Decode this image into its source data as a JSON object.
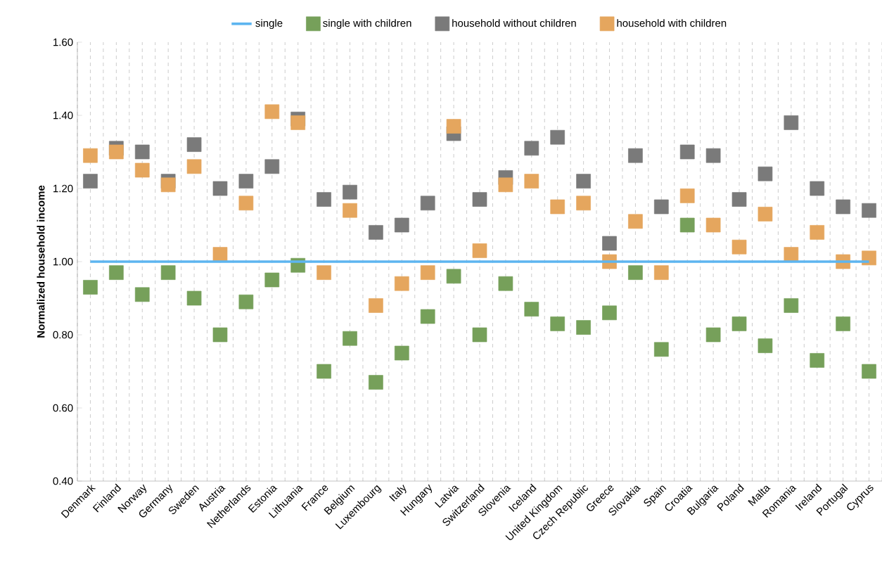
{
  "chart_data": {
    "type": "scatter",
    "ylabel": "Normalized household income",
    "categories": [
      "Denmark",
      "Finland",
      "Norway",
      "Germany",
      "Sweden",
      "Austria",
      "Netherlands",
      "Estonia",
      "Lithuania",
      "France",
      "Belgium",
      "Luxembourg",
      "Italy",
      "Hungary",
      "Latvia",
      "Switzerland",
      "Slovenia",
      "Iceland",
      "United Kingdom",
      "Czech Republic",
      "Greece",
      "Slovakia",
      "Spain",
      "Croatia",
      "Bulgaria",
      "Poland",
      "Malta",
      "Romania",
      "Ireland",
      "Portugal",
      "Cyprus"
    ],
    "series": [
      {
        "name": "single",
        "type": "line",
        "color": "#5db5f0",
        "values": [
          1,
          1,
          1,
          1,
          1,
          1,
          1,
          1,
          1,
          1,
          1,
          1,
          1,
          1,
          1,
          1,
          1,
          1,
          1,
          1,
          1,
          1,
          1,
          1,
          1,
          1,
          1,
          1,
          1,
          1,
          1
        ]
      },
      {
        "name": "single with children",
        "marker": "square",
        "color": "#76a05a",
        "values": [
          0.93,
          0.97,
          0.91,
          0.97,
          0.9,
          0.8,
          0.89,
          0.95,
          0.99,
          0.7,
          0.79,
          0.67,
          0.75,
          0.85,
          0.96,
          0.8,
          0.94,
          0.87,
          0.83,
          0.82,
          0.86,
          0.97,
          0.76,
          1.1,
          0.8,
          0.83,
          0.77,
          0.88,
          0.73,
          0.83,
          0.7
        ]
      },
      {
        "name": "household without children",
        "marker": "square",
        "color": "#7a7a7a",
        "values": [
          1.22,
          1.31,
          1.3,
          1.22,
          1.32,
          1.2,
          1.22,
          1.26,
          1.39,
          1.17,
          1.19,
          1.08,
          1.1,
          1.16,
          1.35,
          1.17,
          1.23,
          1.31,
          1.34,
          1.22,
          1.05,
          1.29,
          1.15,
          1.3,
          1.29,
          1.17,
          1.24,
          1.38,
          1.2,
          1.15,
          1.14
        ]
      },
      {
        "name": "household with children",
        "marker": "square",
        "color": "#e5a65e",
        "values": [
          1.29,
          1.3,
          1.25,
          1.21,
          1.26,
          1.02,
          1.16,
          1.41,
          1.38,
          0.97,
          1.14,
          0.88,
          0.94,
          0.97,
          1.37,
          1.03,
          1.21,
          1.22,
          1.15,
          1.16,
          1.0,
          1.11,
          0.97,
          1.18,
          1.1,
          1.04,
          1.13,
          1.02,
          1.08,
          1.0,
          1.01
        ]
      }
    ],
    "ylim": [
      0.4,
      1.6
    ],
    "yticks": [
      {
        "value": 0.4,
        "label": "0.40"
      },
      {
        "value": 0.6,
        "label": "0.60"
      },
      {
        "value": 0.8,
        "label": "0.80"
      },
      {
        "value": 1.0,
        "label": "1.00"
      },
      {
        "value": 1.2,
        "label": "1.20"
      },
      {
        "value": 1.4,
        "label": "1.40"
      },
      {
        "value": 1.6,
        "label": "1.60"
      }
    ],
    "grid": "x",
    "legend": "top"
  }
}
